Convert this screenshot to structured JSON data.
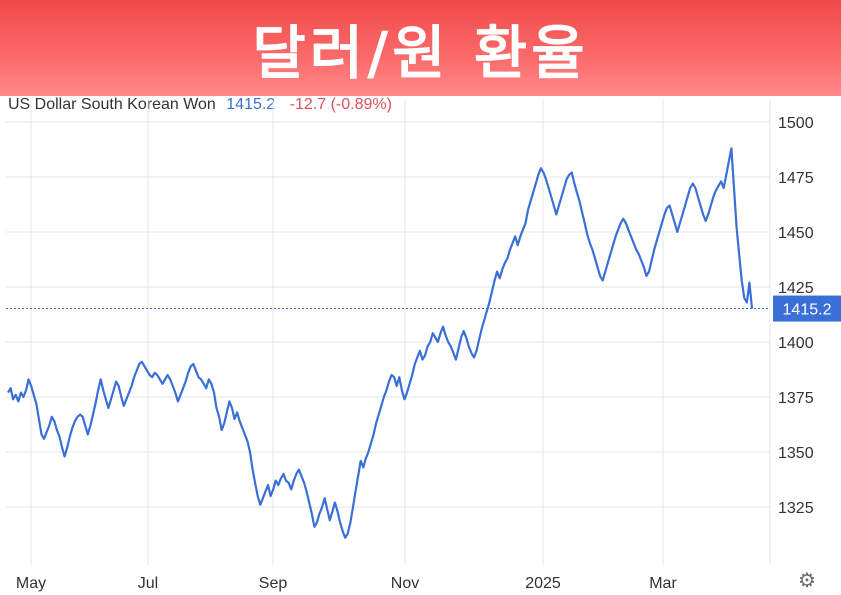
{
  "banner": {
    "title": "달러/원 환율"
  },
  "legend": {
    "name": "US Dollar South Korean Won",
    "last": "1415.2",
    "change": "-12.7 (-0.89%)"
  },
  "colors": {
    "line": "#3a6fd8",
    "grid": "#e6e6e6",
    "last_badge": "#3a6fd8",
    "change_negative": "#e0505a",
    "banner": "#f55050"
  },
  "settings": {
    "icon": "gear-icon"
  },
  "chart_data": {
    "type": "line",
    "title": "",
    "xlabel": "",
    "ylabel": "",
    "ylim": [
      1303,
      1510
    ],
    "y_ticks": [
      1500,
      1475,
      1450,
      1425,
      1400,
      1375,
      1350,
      1325
    ],
    "x_tick_labels": [
      "May",
      "Jul",
      "Sep",
      "Nov",
      "2025",
      "Mar"
    ],
    "grid": true,
    "last_value": 1415.2,
    "last_label": "1415.2",
    "series": [
      {
        "values": [
          1377,
          1379,
          1374,
          1376,
          1373,
          1377,
          1375,
          1378,
          1383,
          1380,
          1376,
          1372,
          1365,
          1358,
          1356,
          1359,
          1362,
          1366,
          1364,
          1360,
          1357,
          1352,
          1348,
          1352,
          1357,
          1361,
          1364,
          1366,
          1367,
          1366,
          1362,
          1358,
          1362,
          1367,
          1372,
          1378,
          1383,
          1378,
          1374,
          1370,
          1374,
          1378,
          1382,
          1380,
          1375,
          1371,
          1374,
          1377,
          1380,
          1384,
          1387,
          1390,
          1391,
          1389,
          1387,
          1385,
          1384,
          1386,
          1385,
          1383,
          1381,
          1383,
          1385,
          1383,
          1380,
          1377,
          1373,
          1376,
          1379,
          1382,
          1386,
          1389,
          1390,
          1387,
          1384,
          1383,
          1381,
          1379,
          1383,
          1381,
          1377,
          1370,
          1366,
          1360,
          1363,
          1368,
          1373,
          1370,
          1365,
          1368,
          1364,
          1361,
          1358,
          1355,
          1350,
          1342,
          1336,
          1330,
          1326,
          1329,
          1332,
          1335,
          1330,
          1333,
          1337,
          1335,
          1338,
          1340,
          1337,
          1336,
          1333,
          1337,
          1340,
          1342,
          1339,
          1336,
          1332,
          1327,
          1322,
          1316,
          1318,
          1322,
          1325,
          1329,
          1324,
          1319,
          1323,
          1327,
          1323,
          1318,
          1314,
          1311,
          1313,
          1318,
          1325,
          1332,
          1339,
          1346,
          1343,
          1347,
          1350,
          1354,
          1358,
          1363,
          1367,
          1371,
          1375,
          1378,
          1382,
          1385,
          1384,
          1380,
          1384,
          1378,
          1374,
          1377,
          1381,
          1385,
          1390,
          1393,
          1396,
          1392,
          1394,
          1398,
          1400,
          1404,
          1402,
          1400,
          1404,
          1407,
          1403,
          1400,
          1398,
          1395,
          1392,
          1397,
          1402,
          1405,
          1402,
          1398,
          1395,
          1393,
          1396,
          1401,
          1406,
          1410,
          1414,
          1418,
          1423,
          1428,
          1432,
          1429,
          1433,
          1436,
          1438,
          1442,
          1445,
          1448,
          1444,
          1448,
          1451,
          1454,
          1460,
          1464,
          1468,
          1472,
          1476,
          1479,
          1477,
          1474,
          1470,
          1466,
          1462,
          1458,
          1462,
          1466,
          1470,
          1474,
          1476,
          1477,
          1472,
          1468,
          1464,
          1459,
          1454,
          1449,
          1445,
          1442,
          1438,
          1434,
          1430,
          1428,
          1432,
          1436,
          1440,
          1444,
          1448,
          1451,
          1454,
          1456,
          1454,
          1451,
          1448,
          1445,
          1442,
          1440,
          1437,
          1434,
          1430,
          1432,
          1437,
          1442,
          1446,
          1450,
          1454,
          1458,
          1461,
          1462,
          1458,
          1454,
          1450,
          1454,
          1458,
          1462,
          1466,
          1470,
          1472,
          1470,
          1466,
          1462,
          1458,
          1455,
          1458,
          1462,
          1466,
          1469,
          1471,
          1473,
          1470,
          1476,
          1482,
          1488,
          1470,
          1452,
          1440,
          1428,
          1420,
          1418,
          1427,
          1415.2
        ]
      }
    ]
  }
}
